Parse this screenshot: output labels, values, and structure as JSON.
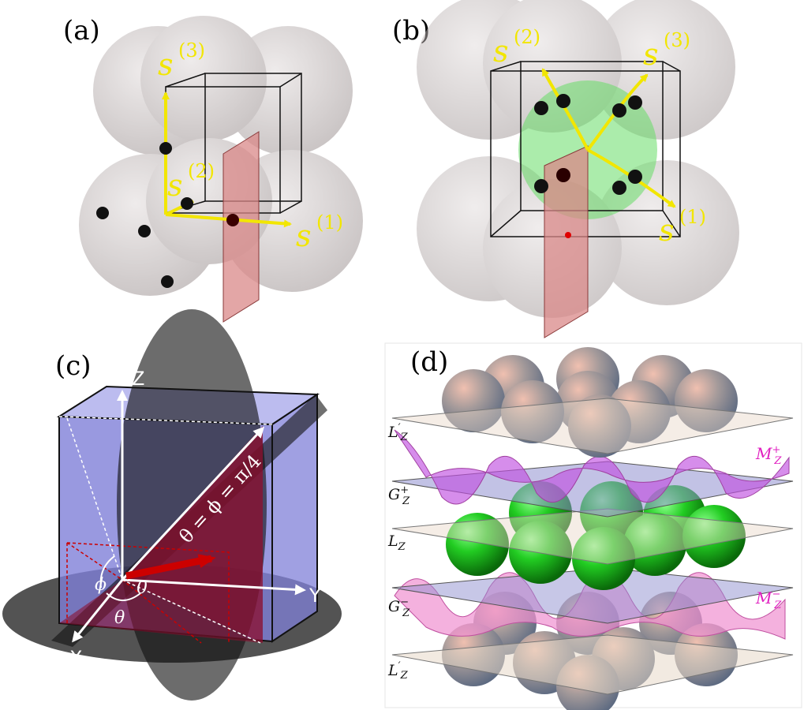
{
  "panels": {
    "a": {
      "label": "(a)",
      "vectors": [
        {
          "base": "s",
          "sup": "(3)"
        },
        {
          "base": "s",
          "sup": "(2)"
        },
        {
          "base": "s",
          "sup": "(1)"
        }
      ]
    },
    "b": {
      "label": "(b)",
      "vectors": [
        {
          "base": "s",
          "sup": "(2)"
        },
        {
          "base": "s",
          "sup": "(3)"
        },
        {
          "base": "s",
          "sup": "(1)"
        }
      ]
    },
    "c": {
      "label": "(c)",
      "axes": {
        "z": "Z",
        "y": "Y",
        "x": "X"
      },
      "origin": "0",
      "phi": "ϕ",
      "theta": "θ",
      "formula": "θ = ϕ = π/4"
    },
    "d": {
      "label": "(d)",
      "layers": [
        {
          "base": "L",
          "mark": "′",
          "sub": "Z"
        },
        {
          "base": "G",
          "mark": "+",
          "sub": "Z"
        },
        {
          "base": "L",
          "mark": "",
          "sub": "Z"
        },
        {
          "base": "G",
          "mark": "−",
          "sub": "Z"
        },
        {
          "base": "L",
          "mark": "′",
          "sub": "Z"
        }
      ],
      "manifolds": [
        {
          "base": "M",
          "mark": "+",
          "sub": "Z"
        },
        {
          "base": "M",
          "mark": "−",
          "sub": "Z"
        }
      ]
    }
  },
  "colors": {
    "vector": "#f2e600",
    "sphere_gray": "#8a7f7f",
    "green_sphere": "#22cc22",
    "plane_pink": "#d98888",
    "cube_blue": "#8080d8",
    "triangle_red": "#8b1030",
    "manifold_magenta": "#e040c0"
  }
}
